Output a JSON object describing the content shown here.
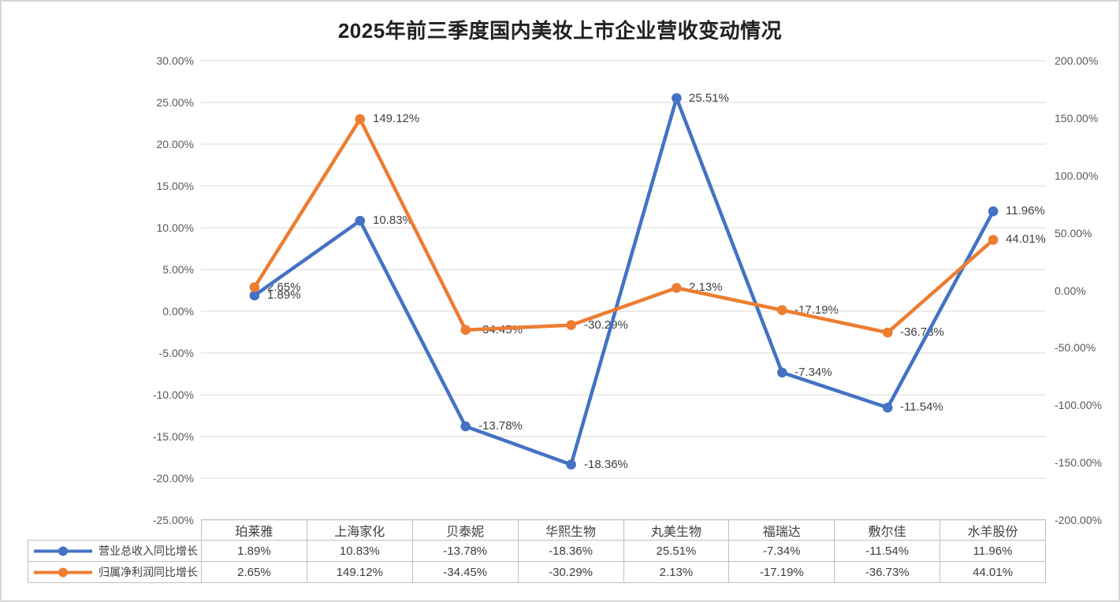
{
  "chart_data": {
    "type": "line",
    "title": "2025年前三季度国内美妆上市企业营收变动情况",
    "categories": [
      "珀莱雅",
      "上海家化",
      "贝泰妮",
      "华熙生物",
      "丸美生物",
      "福瑞达",
      "敷尔佳",
      "水羊股份"
    ],
    "series": [
      {
        "name": "营业总收入同比增长",
        "axis": "left",
        "color": "#4472C4",
        "values": [
          1.89,
          10.83,
          -13.78,
          -18.36,
          25.51,
          -7.34,
          -11.54,
          11.96
        ],
        "labels": [
          "1.89%",
          "10.83%",
          "-13.78%",
          "-18.36%",
          "25.51%",
          "-7.34%",
          "-11.54%",
          "11.96%"
        ]
      },
      {
        "name": "归属净利润同比增长",
        "axis": "right",
        "color": "#ED7D31",
        "values": [
          2.65,
          149.12,
          -34.45,
          -30.29,
          2.13,
          -17.19,
          -36.73,
          44.01
        ],
        "labels": [
          "2.65%",
          "149.12%",
          "-34.45%",
          "-30.29%",
          "2.13%",
          "-17.19%",
          "-36.73%",
          "44.01%"
        ]
      }
    ],
    "left_axis": {
      "min": -25,
      "max": 30,
      "step": 5,
      "ticks": [
        "30.00%",
        "25.00%",
        "20.00%",
        "15.00%",
        "10.00%",
        "5.00%",
        "0.00%",
        "-5.00%",
        "-10.00%",
        "-15.00%",
        "-20.00%",
        "-25.00%"
      ]
    },
    "right_axis": {
      "min": -200,
      "max": 200,
      "step": 50,
      "ticks": [
        "200.00%",
        "150.00%",
        "100.00%",
        "50.00%",
        "0.00%",
        "-50.00%",
        "-100.00%",
        "-150.00%",
        "-200.00%"
      ]
    },
    "grid": true,
    "data_labels": true,
    "legend_position": "data-table-left"
  },
  "colors": {
    "series_blue": "#4472C4",
    "series_orange": "#ED7D31",
    "gridline": "#D9D9D9",
    "axis_text": "#595959",
    "data_label_text": "#404040",
    "table_border": "#BFBFBF",
    "title_text": "#212121",
    "background": "#FFFFFF"
  }
}
